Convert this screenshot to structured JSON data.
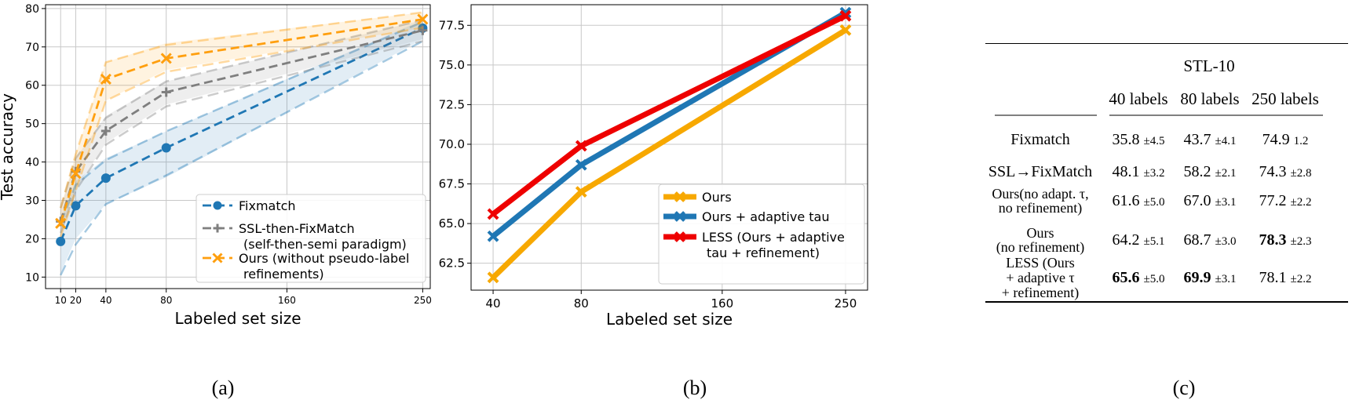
{
  "chart_data": [
    {
      "type": "line",
      "xlabel": "Labeled set size",
      "ylabel": "Test accuracy",
      "x_ticks": [
        "10",
        "20",
        "40",
        "80",
        "160",
        "250"
      ],
      "x_tick_values": [
        10,
        20,
        40,
        80,
        160,
        250
      ],
      "y_ticks": [
        "10",
        "20",
        "30",
        "40",
        "50",
        "60",
        "70",
        "80"
      ],
      "xlim": [
        0,
        255
      ],
      "ylim": [
        7,
        81
      ],
      "grid": true,
      "legend_position": "lower-right",
      "series": [
        {
          "name": "Fixmatch",
          "color": "#1f77b4",
          "marker": "circle",
          "x": [
            10,
            20,
            40,
            80,
            250
          ],
          "y": [
            19.3,
            28.6,
            35.8,
            43.7,
            74.9
          ],
          "band_lower": [
            11,
            20,
            29,
            36,
            72
          ],
          "band_upper": [
            25,
            35,
            41,
            48,
            77
          ],
          "dash_lower": [
            10.5,
            18.5,
            29,
            36.5,
            71.5
          ],
          "dash_upper": [
            24,
            34,
            40.5,
            48,
            76.5
          ]
        },
        {
          "name": "SSL-then-FixMatch",
          "name_line2": "(self-then-semi paradigm)",
          "color": "#7f7f7f",
          "marker": "plus",
          "x": [
            10,
            20,
            40,
            80,
            250
          ],
          "y": [
            24.5,
            37.5,
            48.1,
            58.2,
            74.3
          ],
          "band_lower": [
            22,
            33,
            45,
            55,
            72
          ],
          "band_upper": [
            28,
            41,
            52,
            61,
            77
          ],
          "dash_lower": [
            21.5,
            32.5,
            44.5,
            54.5,
            71.5
          ],
          "dash_upper": [
            28,
            41,
            51.5,
            61,
            77
          ]
        },
        {
          "name": "Ours (without pseudo-label",
          "name_line2": "refinements)",
          "color": "#ff9f0e",
          "marker": "x",
          "x": [
            10,
            20,
            40,
            80,
            250
          ],
          "y": [
            24.0,
            37.0,
            61.6,
            67.0,
            77.2
          ],
          "band_lower": [
            21,
            33,
            56,
            64,
            75
          ],
          "band_upper": [
            28,
            42,
            66,
            71,
            79
          ],
          "dash_lower": [
            20.5,
            32.5,
            56,
            63.5,
            75
          ],
          "dash_upper": [
            28,
            42,
            66,
            70.5,
            79
          ]
        }
      ]
    },
    {
      "type": "line",
      "xlabel": "Labeled set size",
      "ylabel": "",
      "categories": [
        "40",
        "80",
        "160",
        "250"
      ],
      "x_positions": [
        0,
        1,
        2.6,
        4
      ],
      "y_ticks": [
        "62.5",
        "65.0",
        "67.5",
        "70.0",
        "72.5",
        "75.0",
        "77.5"
      ],
      "ylim": [
        60.8,
        78.8
      ],
      "grid": true,
      "legend_position": "lower-right",
      "series": [
        {
          "name": "Ours",
          "color": "#f7a800",
          "marker": "x",
          "points": [
            [
              0,
              61.6
            ],
            [
              1,
              67.0
            ],
            [
              4,
              77.2
            ]
          ]
        },
        {
          "name": "Ours + adaptive tau",
          "color": "#1f77b4",
          "marker": "x",
          "points": [
            [
              0,
              64.2
            ],
            [
              1,
              68.7
            ],
            [
              4,
              78.3
            ]
          ]
        },
        {
          "name": "LESS (Ours + adaptive",
          "name_line2": "tau  + refinement)",
          "color": "#ee0000",
          "marker": "x",
          "points": [
            [
              0,
              65.6
            ],
            [
              1,
              69.9
            ],
            [
              4,
              78.1
            ]
          ]
        }
      ]
    },
    {
      "type": "table",
      "dataset": "STL-10",
      "columns": [
        "40 labels",
        "80 labels",
        "250 labels"
      ],
      "rows": [
        {
          "method": [
            "Fixmatch"
          ],
          "cells": [
            {
              "v": "35.8",
              "pm": "±4.5",
              "bold": false
            },
            {
              "v": "43.7",
              "pm": "±4.1",
              "bold": false
            },
            {
              "v": "74.9",
              "pm": "1.2",
              "bold": false
            }
          ]
        },
        {
          "method": [
            "SSL→FixMatch"
          ],
          "cells": [
            {
              "v": "48.1",
              "pm": "±3.2",
              "bold": false
            },
            {
              "v": "58.2",
              "pm": "±2.1",
              "bold": false
            },
            {
              "v": "74.3",
              "pm": "±2.8",
              "bold": false
            }
          ]
        },
        {
          "method": [
            "Ours(no adapt. τ,",
            "no refinement)"
          ],
          "cells": [
            {
              "v": "61.6",
              "pm": "±5.0",
              "bold": false
            },
            {
              "v": "67.0",
              "pm": "±3.1",
              "bold": false
            },
            {
              "v": "77.2",
              "pm": "±2.2",
              "bold": false
            }
          ]
        },
        {
          "method": [
            "Ours",
            "(no refinement)"
          ],
          "cells": [
            {
              "v": "64.2",
              "pm": "±5.1",
              "bold": false
            },
            {
              "v": "68.7",
              "pm": "±3.0",
              "bold": false
            },
            {
              "v": "78.3",
              "pm": "±2.3",
              "bold": true
            }
          ]
        },
        {
          "method": [
            "LESS  (Ours",
            "+ adaptive τ",
            "+ refinement)"
          ],
          "cells": [
            {
              "v": "65.6",
              "pm": "±5.0",
              "bold": true
            },
            {
              "v": "69.9",
              "pm": "±3.1",
              "bold": true
            },
            {
              "v": "78.1",
              "pm": "±2.2",
              "bold": false
            }
          ]
        }
      ]
    }
  ],
  "captions": {
    "a": "(a)",
    "b": "(b)",
    "c": "(c)"
  }
}
